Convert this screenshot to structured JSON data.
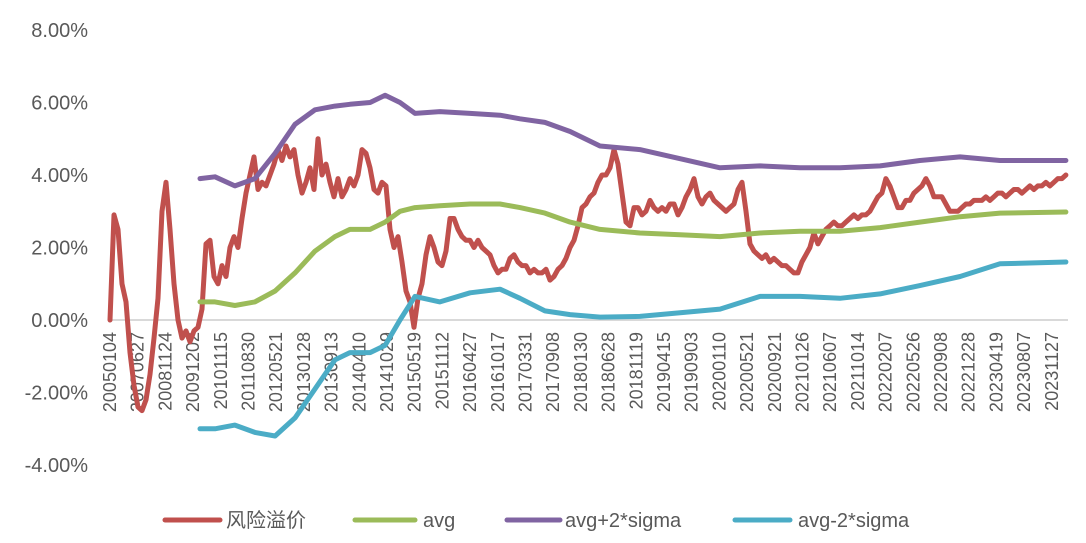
{
  "chart_data": {
    "type": "line",
    "title": "",
    "xlabel": "",
    "ylabel": "",
    "ylim": [
      -4,
      8
    ],
    "y_ticks": [
      "8.00%",
      "6.00%",
      "4.00%",
      "2.00%",
      "0.00%",
      "-2.00%",
      "-4.00%"
    ],
    "y_tick_values": [
      8,
      6,
      4,
      2,
      0,
      -2,
      -4
    ],
    "x_tick_labels": [
      "20050104",
      "20070627",
      "20081124",
      "20091202",
      "20101115",
      "20110830",
      "20120521",
      "20130128",
      "20130913",
      "20140410",
      "20141029",
      "20150519",
      "20151112",
      "20160427",
      "20161017",
      "20170331",
      "20170908",
      "20180130",
      "20180628",
      "20181119",
      "20190415",
      "20190903",
      "20200110",
      "20200521",
      "20200921",
      "20210126",
      "20210607",
      "20211014",
      "20220207",
      "20220526",
      "20220908",
      "20221228",
      "20230419",
      "20230807",
      "20231127"
    ],
    "xlim_index": [
      0,
      34.5
    ],
    "grid": "zero line only",
    "legend_position": "bottom",
    "series": [
      {
        "name": "风险溢价",
        "color": "#C0504D",
        "x_start": 0,
        "x_end": 34.51,
        "values": [
          0,
          2.9,
          2.5,
          1.0,
          0.5,
          -0.9,
          -1.8,
          -2.4,
          -2.5,
          -2.2,
          -1.5,
          -0.5,
          0.6,
          3.0,
          3.8,
          2.5,
          1.0,
          0.0,
          -0.5,
          -0.3,
          -0.6,
          -0.3,
          -0.2,
          0.3,
          2.1,
          2.2,
          1.2,
          1.0,
          1.5,
          1.2,
          2.0,
          2.3,
          2.0,
          2.8,
          3.5,
          4.0,
          4.5,
          3.6,
          3.8,
          3.7,
          4.0,
          4.3,
          4.7,
          4.4,
          4.8,
          4.5,
          4.7,
          4.0,
          3.5,
          3.8,
          4.2,
          3.6,
          5.0,
          4.0,
          4.3,
          3.8,
          3.4,
          3.9,
          3.4,
          3.6,
          3.9,
          3.7,
          4.0,
          4.7,
          4.6,
          4.2,
          3.6,
          3.5,
          3.8,
          3.7,
          2.5,
          2.0,
          2.3,
          1.6,
          0.8,
          0.5,
          -0.2,
          0.6,
          1.0,
          1.8,
          2.3,
          2.0,
          1.6,
          1.5,
          1.9,
          2.8,
          2.8,
          2.5,
          2.3,
          2.2,
          2.2,
          2.0,
          2.2,
          2.0,
          1.9,
          1.8,
          1.5,
          1.3,
          1.4,
          1.4,
          1.7,
          1.8,
          1.6,
          1.5,
          1.5,
          1.3,
          1.4,
          1.3,
          1.3,
          1.4,
          1.1,
          1.2,
          1.4,
          1.5,
          1.7,
          2.0,
          2.2,
          2.6,
          3.1,
          3.2,
          3.4,
          3.5,
          3.8,
          4.0,
          4.0,
          4.2,
          4.7,
          4.3,
          3.5,
          2.7,
          2.6,
          3.1,
          3.1,
          2.9,
          3.0,
          3.3,
          3.1,
          3.0,
          3.1,
          3.0,
          3.2,
          3.2,
          2.9,
          3.1,
          3.4,
          3.6,
          3.9,
          3.4,
          3.2,
          3.4,
          3.5,
          3.3,
          3.2,
          3.1,
          3.0,
          3.1,
          3.2,
          3.6,
          3.8,
          3.0,
          2.1,
          1.9,
          1.8,
          1.7,
          1.8,
          1.6,
          1.7,
          1.6,
          1.5,
          1.5,
          1.4,
          1.3,
          1.3,
          1.6,
          1.8,
          2.0,
          2.4,
          2.1,
          2.3,
          2.5,
          2.6,
          2.7,
          2.6,
          2.6,
          2.7,
          2.8,
          2.9,
          2.8,
          2.9,
          2.9,
          3.0,
          3.2,
          3.4,
          3.5,
          3.9,
          3.7,
          3.4,
          3.1,
          3.1,
          3.3,
          3.3,
          3.5,
          3.6,
          3.7,
          3.9,
          3.7,
          3.4,
          3.4,
          3.4,
          3.2,
          3.0,
          3.0,
          3.0,
          3.1,
          3.2,
          3.2,
          3.3,
          3.3,
          3.3,
          3.4,
          3.3,
          3.4,
          3.5,
          3.5,
          3.4,
          3.5,
          3.6,
          3.6,
          3.5,
          3.6,
          3.7,
          3.6,
          3.7,
          3.7,
          3.8,
          3.7,
          3.8,
          3.9,
          3.9,
          4.0
        ]
      },
      {
        "name": "avg",
        "color": "#9BBB59",
        "points": [
          [
            3.25,
            0.5
          ],
          [
            3.79,
            0.5
          ],
          [
            4.51,
            0.4
          ],
          [
            5.23,
            0.5
          ],
          [
            5.96,
            0.8
          ],
          [
            6.68,
            1.3
          ],
          [
            7.4,
            1.9
          ],
          [
            8.12,
            2.3
          ],
          [
            8.66,
            2.5
          ],
          [
            9.39,
            2.5
          ],
          [
            9.93,
            2.7
          ],
          [
            10.47,
            3.0
          ],
          [
            11.01,
            3.1
          ],
          [
            11.91,
            3.15
          ],
          [
            13.0,
            3.2
          ],
          [
            14.08,
            3.2
          ],
          [
            14.8,
            3.1
          ],
          [
            15.7,
            2.95
          ],
          [
            16.61,
            2.7
          ],
          [
            17.69,
            2.5
          ],
          [
            19.13,
            2.4
          ],
          [
            20.58,
            2.35
          ],
          [
            22.02,
            2.3
          ],
          [
            23.47,
            2.4
          ],
          [
            24.91,
            2.45
          ],
          [
            26.35,
            2.45
          ],
          [
            27.8,
            2.55
          ],
          [
            29.24,
            2.7
          ],
          [
            30.69,
            2.85
          ],
          [
            32.13,
            2.95
          ],
          [
            34.51,
            2.98
          ]
        ]
      },
      {
        "name": "avg+2*sigma",
        "color": "#8064A2",
        "points": [
          [
            3.25,
            3.9
          ],
          [
            3.79,
            3.95
          ],
          [
            4.51,
            3.7
          ],
          [
            5.23,
            3.9
          ],
          [
            5.96,
            4.6
          ],
          [
            6.68,
            5.4
          ],
          [
            7.4,
            5.8
          ],
          [
            8.12,
            5.9
          ],
          [
            8.66,
            5.95
          ],
          [
            9.39,
            6.0
          ],
          [
            9.93,
            6.2
          ],
          [
            10.47,
            6.0
          ],
          [
            11.01,
            5.7
          ],
          [
            11.91,
            5.75
          ],
          [
            13.0,
            5.7
          ],
          [
            14.08,
            5.65
          ],
          [
            14.8,
            5.55
          ],
          [
            15.7,
            5.45
          ],
          [
            16.61,
            5.2
          ],
          [
            17.69,
            4.8
          ],
          [
            19.13,
            4.7
          ],
          [
            20.58,
            4.45
          ],
          [
            22.02,
            4.2
          ],
          [
            23.47,
            4.25
          ],
          [
            24.91,
            4.2
          ],
          [
            26.35,
            4.2
          ],
          [
            27.8,
            4.25
          ],
          [
            29.24,
            4.4
          ],
          [
            30.69,
            4.5
          ],
          [
            32.13,
            4.4
          ],
          [
            34.51,
            4.4
          ]
        ]
      },
      {
        "name": "avg-2*sigma",
        "color": "#4BACC6",
        "points": [
          [
            3.25,
            -3.0
          ],
          [
            3.79,
            -3.0
          ],
          [
            4.51,
            -2.9
          ],
          [
            5.23,
            -3.1
          ],
          [
            5.96,
            -3.2
          ],
          [
            6.68,
            -2.7
          ],
          [
            7.4,
            -1.9
          ],
          [
            8.12,
            -1.1
          ],
          [
            8.66,
            -0.9
          ],
          [
            9.39,
            -0.9
          ],
          [
            9.93,
            -0.7
          ],
          [
            10.47,
            0.0
          ],
          [
            11.01,
            0.65
          ],
          [
            11.91,
            0.5
          ],
          [
            13.0,
            0.75
          ],
          [
            14.08,
            0.85
          ],
          [
            14.8,
            0.6
          ],
          [
            15.7,
            0.25
          ],
          [
            16.61,
            0.15
          ],
          [
            17.69,
            0.08
          ],
          [
            19.13,
            0.1
          ],
          [
            20.58,
            0.2
          ],
          [
            22.02,
            0.3
          ],
          [
            23.47,
            0.65
          ],
          [
            24.91,
            0.65
          ],
          [
            26.35,
            0.6
          ],
          [
            27.8,
            0.72
          ],
          [
            29.24,
            0.95
          ],
          [
            30.69,
            1.2
          ],
          [
            32.13,
            1.55
          ],
          [
            34.51,
            1.6
          ]
        ]
      }
    ]
  }
}
